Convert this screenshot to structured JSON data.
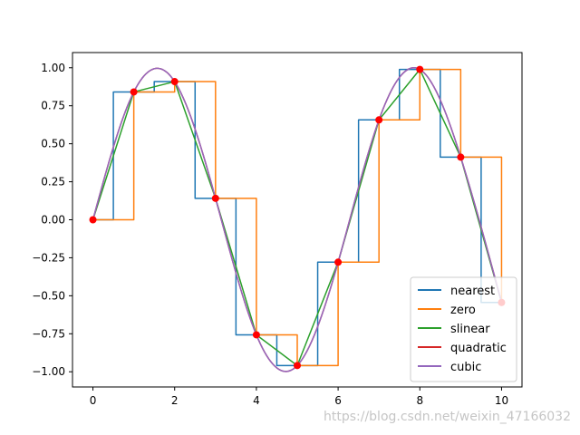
{
  "chart_data": {
    "type": "line",
    "title": "",
    "xlabel": "",
    "ylabel": "",
    "xlim": [
      -0.5,
      10.5
    ],
    "ylim": [
      -1.1,
      1.1
    ],
    "xticks": [
      0,
      2,
      4,
      6,
      8,
      10
    ],
    "xtick_labels": [
      "0",
      "2",
      "4",
      "6",
      "8",
      "10"
    ],
    "yticks": [
      -1.0,
      -0.75,
      -0.5,
      -0.25,
      0.0,
      0.25,
      0.5,
      0.75,
      1.0
    ],
    "ytick_labels": [
      "−1.00",
      "−0.75",
      "−0.50",
      "−0.25",
      "0.00",
      "0.25",
      "0.50",
      "0.75",
      "1.00"
    ],
    "grid": false,
    "legend_position": "lower-right",
    "points": {
      "color": "#ff0000",
      "x": [
        0,
        1,
        2,
        3,
        4,
        5,
        6,
        7,
        8,
        9,
        10
      ],
      "y": [
        0.0,
        0.841,
        0.909,
        0.141,
        -0.757,
        -0.959,
        -0.279,
        0.657,
        0.989,
        0.412,
        -0.544
      ]
    },
    "series": [
      {
        "name": "nearest",
        "color": "#1f77b4",
        "interpolation": "nearest"
      },
      {
        "name": "zero",
        "color": "#ff7f0e",
        "interpolation": "zero"
      },
      {
        "name": "slinear",
        "color": "#2ca02c",
        "interpolation": "linear"
      },
      {
        "name": "quadratic",
        "color": "#d62728",
        "interpolation": "smooth"
      },
      {
        "name": "cubic",
        "color": "#9467bd",
        "interpolation": "smooth"
      }
    ]
  },
  "watermark": "https://blog.csdn.net/weixin_47166032"
}
